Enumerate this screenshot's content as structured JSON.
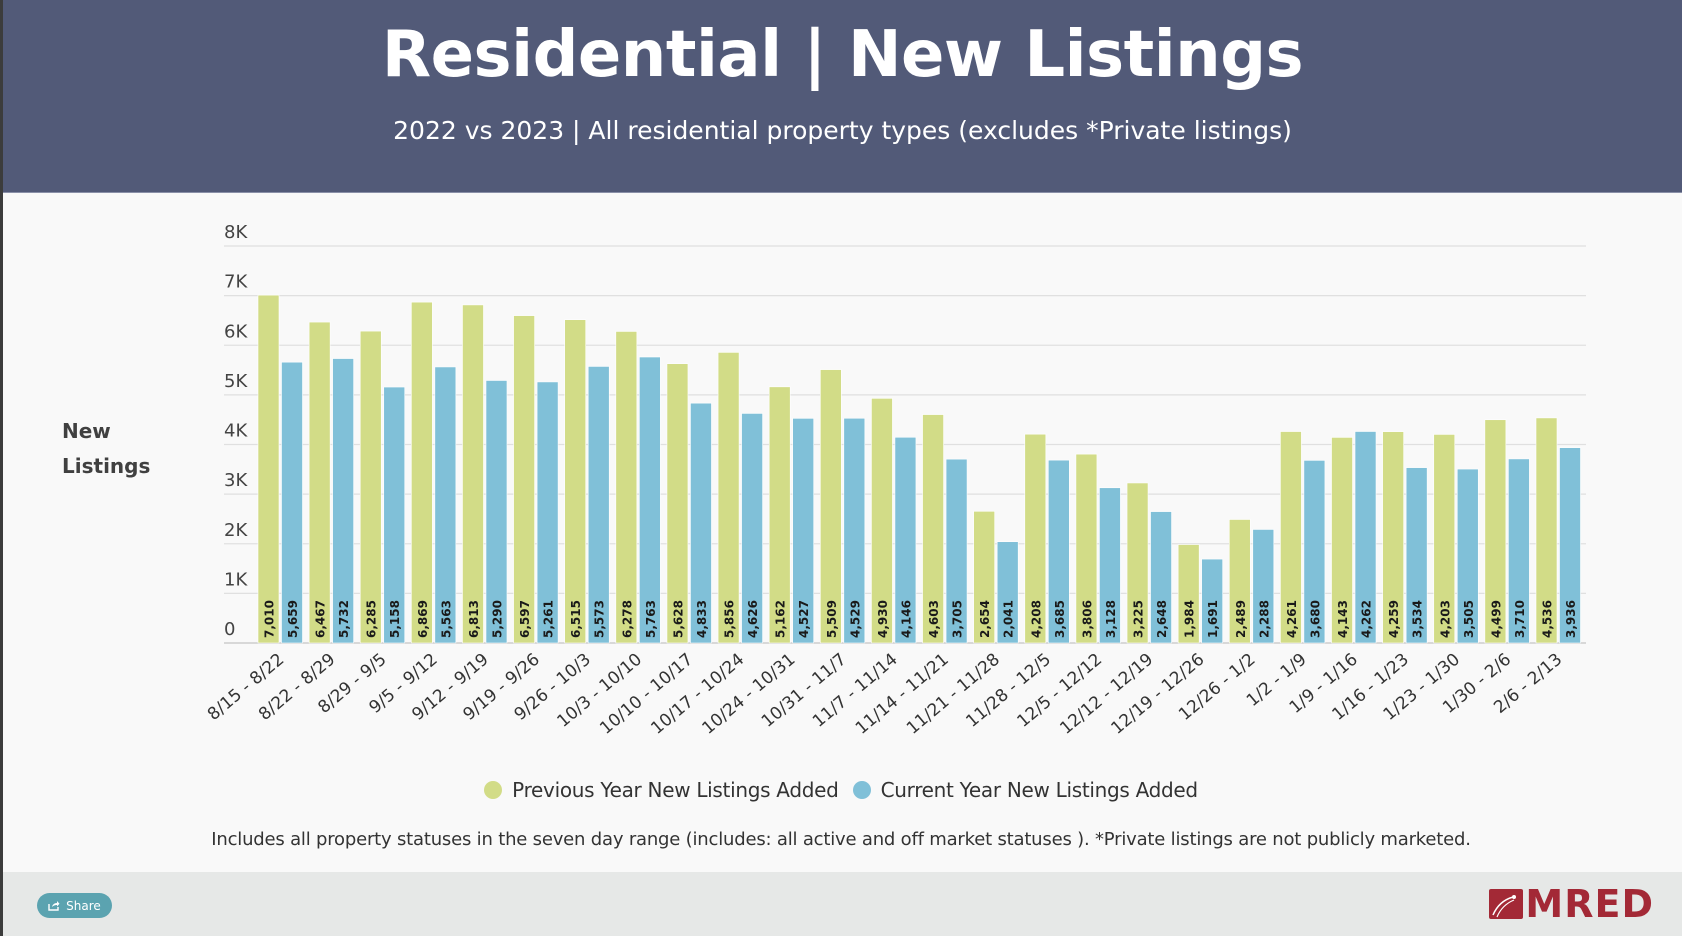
{
  "header": {
    "title": "Residential | New Listings",
    "subtitle": "2022 vs 2023 | All residential property types (excludes *Private listings)"
  },
  "footnote": "Includes all property statuses in the seven day range (includes: all active and off market statuses ). *Private listings are not publicly marketed.",
  "footer": {
    "share_label": "Share",
    "share_icon": "share-icon",
    "logo_text": "MRED"
  },
  "colors": {
    "header_bg": "#525a78",
    "previous_year": "#d2dc87",
    "current_year": "#80c0d8",
    "logo": "#a32936",
    "share_button": "#5ba3b0"
  },
  "chart_data": {
    "type": "bar",
    "title": "Residential | New Listings",
    "subtitle": "2022 vs 2023 | All residential property types (excludes *Private listings)",
    "xlabel": "",
    "ylabel": "New Listings",
    "ylabel_lines": [
      "New",
      "Listings"
    ],
    "ylim": [
      0,
      8000
    ],
    "yticks": [
      0,
      1000,
      2000,
      3000,
      4000,
      5000,
      6000,
      7000,
      8000
    ],
    "ytick_labels": [
      "0",
      "1K",
      "2K",
      "3K",
      "4K",
      "5K",
      "6K",
      "7K",
      "8K"
    ],
    "grid": true,
    "legend_position": "bottom",
    "categories": [
      "8/15 - 8/22",
      "8/22 - 8/29",
      "8/29 - 9/5",
      "9/5 - 9/12",
      "9/12 - 9/19",
      "9/19 - 9/26",
      "9/26 - 10/3",
      "10/3 - 10/10",
      "10/10 - 10/17",
      "10/17 - 10/24",
      "10/24 - 10/31",
      "10/31 - 11/7",
      "11/7 - 11/14",
      "11/14 - 11/21",
      "11/21 - 11/28",
      "11/28 - 12/5",
      "12/5 - 12/12",
      "12/12 - 12/19",
      "12/19 - 12/26",
      "12/26 - 1/2",
      "1/2 - 1/9",
      "1/9 - 1/16",
      "1/16 - 1/23",
      "1/23 - 1/30",
      "1/30 - 2/6",
      "2/6 - 2/13"
    ],
    "series": [
      {
        "name": "Previous Year New Listings Added",
        "color": "#d2dc87",
        "values": [
          7010,
          6467,
          6285,
          6869,
          6813,
          6597,
          6515,
          6278,
          5628,
          5856,
          5162,
          5509,
          4930,
          4603,
          2654,
          4208,
          3806,
          3225,
          1984,
          2489,
          4261,
          4143,
          4259,
          4203,
          4499,
          4536
        ]
      },
      {
        "name": "Current Year New Listings Added",
        "color": "#80c0d8",
        "values": [
          5659,
          5732,
          5158,
          5563,
          5290,
          5261,
          5573,
          5763,
          4833,
          4626,
          4527,
          4529,
          4146,
          3705,
          2041,
          3685,
          3128,
          2648,
          1691,
          2288,
          3680,
          4262,
          3534,
          3505,
          3710,
          3936
        ]
      }
    ]
  }
}
